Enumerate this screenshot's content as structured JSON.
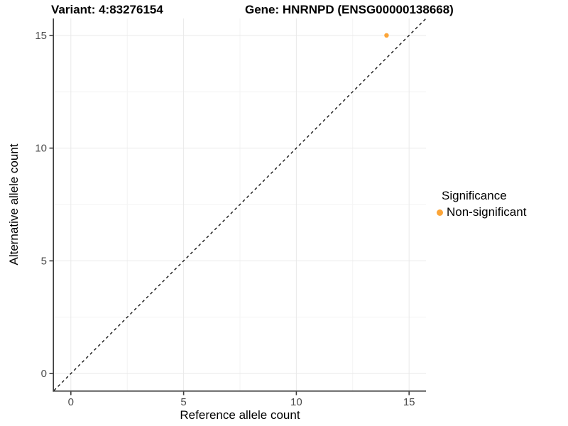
{
  "header": {
    "variant_title": "Variant: 4:83276154",
    "gene_title": "Gene: HNRNPD (ENSG00000138668)"
  },
  "chart_data": {
    "type": "scatter",
    "xlabel": "Reference allele count",
    "ylabel": "Alternative allele count",
    "xlim": [
      -0.75,
      15.75
    ],
    "ylim": [
      -0.75,
      15.75
    ],
    "x_ticks": [
      0,
      5,
      10,
      15
    ],
    "y_ticks": [
      0,
      5,
      10,
      15
    ],
    "x_minor_ticks": [
      2.5,
      7.5,
      12.5
    ],
    "y_minor_ticks": [
      2.5,
      7.5,
      12.5
    ],
    "grid": true,
    "points": [
      {
        "x": 14,
        "y": 15,
        "series": "Non-significant"
      }
    ],
    "reference_line": {
      "slope": 1,
      "intercept": 0,
      "style": "dashed"
    },
    "legend": {
      "position": "right",
      "title": "Significance",
      "entries": [
        {
          "label": "Non-significant",
          "color": "#FCA538"
        }
      ]
    },
    "colors": {
      "point": "#FCA538",
      "grid_major": "#e9e9e9",
      "grid_minor": "#f3f3f3",
      "axis_line": "#3c3c3c",
      "tick_mark": "#3c3c3c",
      "tick_label": "#4d4d4d",
      "reference_line": "#141414",
      "background": "#ffffff"
    }
  }
}
